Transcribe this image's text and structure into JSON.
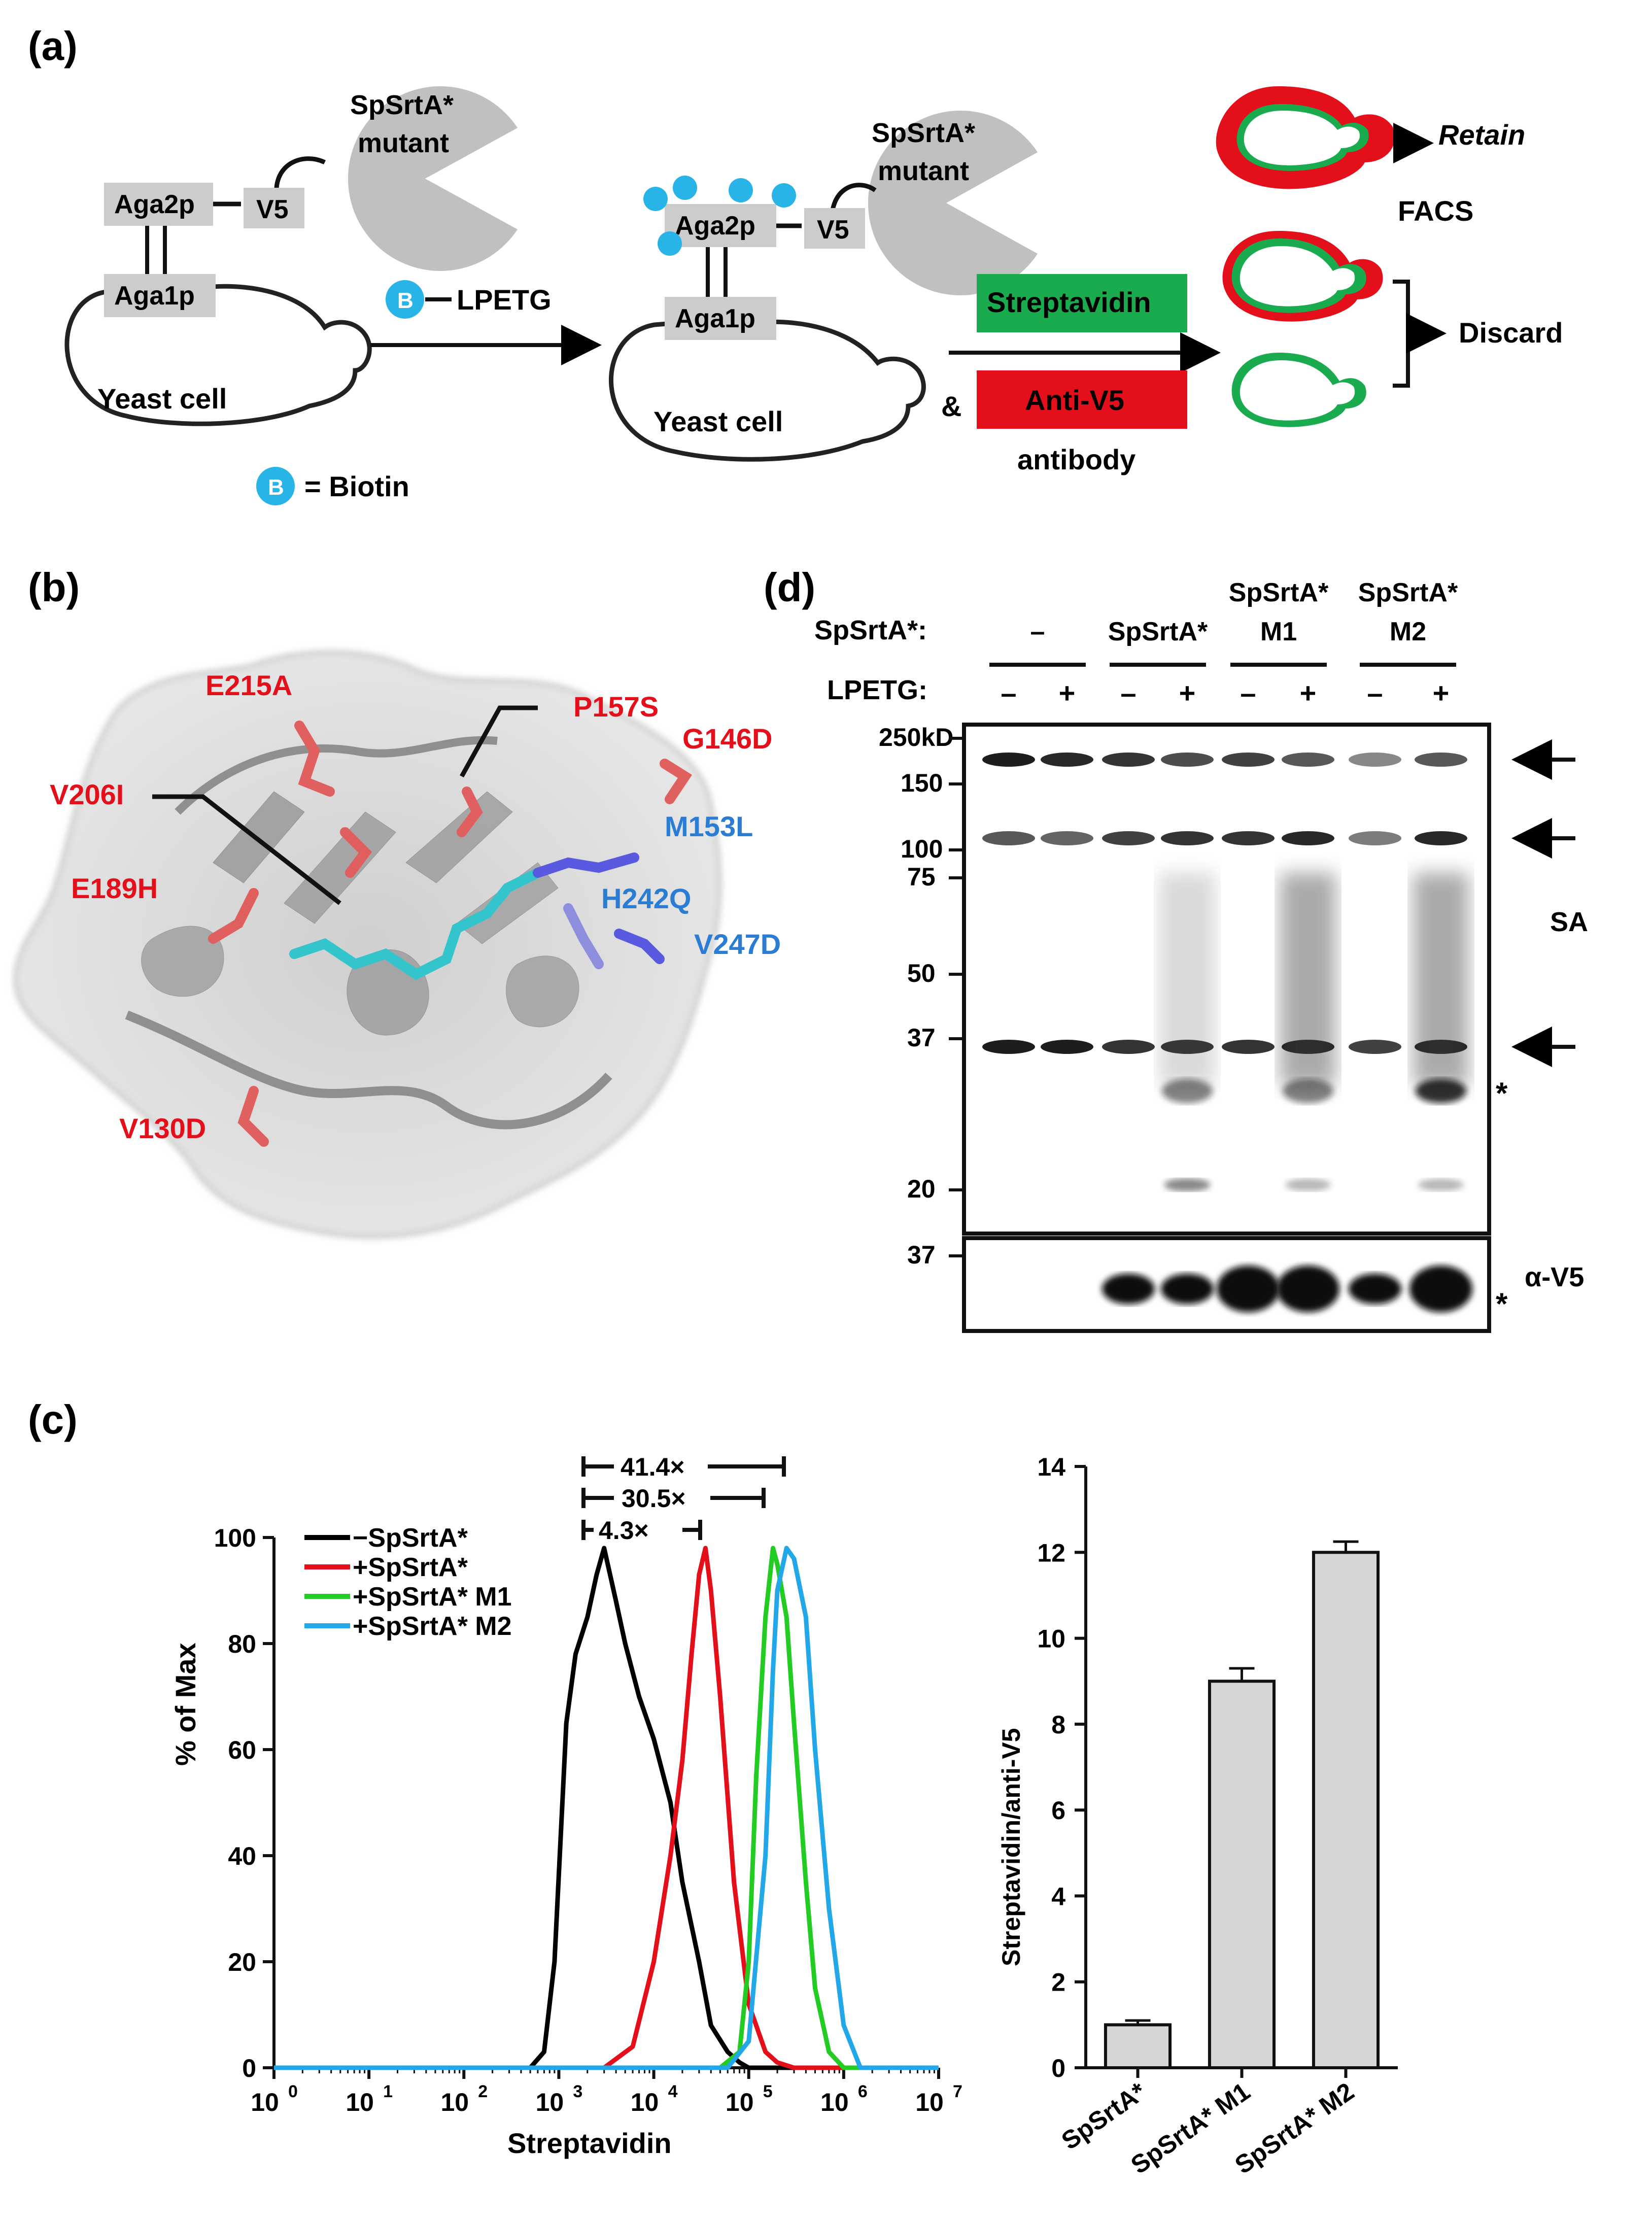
{
  "panel_a": {
    "label": "(a)",
    "srt_left": "SpSrtA*",
    "srt_left_2": "mutant",
    "aga2p": "Aga2p",
    "aga1p": "Aga1p",
    "v5": "V5",
    "yeast_cell": "Yeast cell",
    "biotin_symbol": "B",
    "lpetg": "LPETG",
    "biotin_legend": "= Biotin",
    "streptavidin": "Streptavidin",
    "ampersand": "&",
    "anti_v5": "Anti-V5",
    "antibody": "antibody",
    "retain": "Retain",
    "facs": "FACS",
    "discard": "Discard",
    "colors": {
      "streptavidin": "#1aab4f",
      "anti_v5": "#e3101b",
      "biotin": "#29b4e8",
      "box_gray": "#cccccc"
    }
  },
  "panel_b": {
    "label": "(b)",
    "mutations_red": [
      "E215A",
      "P157S",
      "G146D",
      "V206I",
      "E189H",
      "V130D"
    ],
    "mutations_blue": [
      "M153L",
      "H242Q",
      "V247D"
    ],
    "colors": {
      "red": "#e3101b",
      "blue": "#2b7cd3"
    }
  },
  "panel_c": {
    "label": "(c)",
    "folds": [
      "41.4×",
      "30.5×",
      "4.3×"
    ],
    "legend": [
      "−SpSrtA*",
      "+SpSrtA*",
      "+SpSrtA* M1",
      "+SpSrtA* M2"
    ],
    "hist_ylabel": "% of Max",
    "hist_xlabel": "Streptavidin",
    "hist_yticks": [
      "0",
      "20",
      "40",
      "60",
      "80",
      "100"
    ],
    "hist_xticks": [
      "0",
      "1",
      "2",
      "3",
      "4",
      "5",
      "6",
      "7"
    ],
    "hist_xtick_base": "10",
    "bar_ylabel": "Streptavidin/anti-V5",
    "bar_yticks": [
      "0",
      "2",
      "4",
      "6",
      "8",
      "10",
      "12",
      "14"
    ]
  },
  "panel_d": {
    "label": "(d)",
    "row_srt": "SpSrtA*:",
    "row_lpetg": "LPETG:",
    "groups": [
      "–",
      "SpSrtA*",
      "SpSrtA*\nM1",
      "SpSrtA*\nM2"
    ],
    "group_top": [
      "",
      "",
      "SpSrtA*",
      "SpSrtA*"
    ],
    "group_bottom": [
      "–",
      "SpSrtA*",
      "M1",
      "M2"
    ],
    "minus": "–",
    "plus": "+",
    "mw_markers": [
      "250kD",
      "150",
      "100",
      "75",
      "50",
      "37",
      "20"
    ],
    "mw_lower": "37",
    "sa_label": "SA",
    "v5_label": "α-V5",
    "star": "*"
  },
  "chart_data": [
    {
      "type": "line",
      "xlabel": "Streptavidin",
      "ylabel": "% of Max",
      "xscale": "log",
      "xlim": [
        1,
        10000000
      ],
      "ylim": [
        0,
        100
      ],
      "series": [
        {
          "name": "−SpSrtA*",
          "color": "#000000",
          "x": [
            500,
            700,
            900,
            1200,
            1500,
            2000,
            2500,
            3000,
            4000,
            5000,
            7000,
            10000,
            15000,
            20000,
            30000,
            40000,
            60000,
            80000,
            100000
          ],
          "y": [
            0,
            3,
            20,
            65,
            78,
            85,
            93,
            98,
            88,
            80,
            70,
            62,
            50,
            35,
            20,
            8,
            3,
            1,
            0
          ]
        },
        {
          "name": "+SpSrtA*",
          "color": "#e3101b",
          "x": [
            3000,
            6000,
            10000,
            15000,
            20000,
            25000,
            30000,
            35000,
            40000,
            50000,
            70000,
            100000,
            150000,
            200000,
            300000
          ],
          "y": [
            0,
            4,
            20,
            40,
            58,
            78,
            93,
            98,
            90,
            70,
            35,
            12,
            3,
            1,
            0
          ]
        },
        {
          "name": "+SpSrtA* M1",
          "color": "#22cc22",
          "x": [
            50000,
            80000,
            100000,
            120000,
            150000,
            180000,
            200000,
            250000,
            300000,
            400000,
            500000,
            700000,
            1000000
          ],
          "y": [
            0,
            3,
            20,
            55,
            85,
            98,
            95,
            85,
            65,
            35,
            15,
            3,
            0
          ]
        },
        {
          "name": "+SpSrtA* M2",
          "color": "#22a8e8",
          "x": [
            60000,
            100000,
            150000,
            180000,
            200000,
            250000,
            300000,
            400000,
            500000,
            700000,
            1000000,
            1500000
          ],
          "y": [
            0,
            5,
            40,
            75,
            90,
            98,
            96,
            85,
            60,
            30,
            8,
            0
          ]
        }
      ]
    },
    {
      "type": "bar",
      "categories": [
        "SpSrtA*",
        "SpSrtA* M1",
        "SpSrtA* M2"
      ],
      "values": [
        1.0,
        9.0,
        12.0
      ],
      "errors": [
        0.1,
        0.3,
        0.25
      ],
      "ylabel": "Streptavidin/anti-V5",
      "ylim": [
        0,
        14
      ]
    }
  ]
}
